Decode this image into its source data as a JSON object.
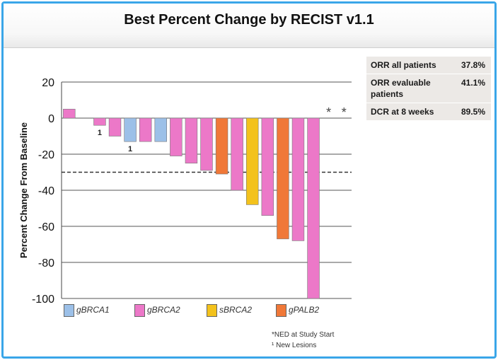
{
  "chart_data": {
    "type": "bar",
    "title": "Best Percent Change by RECIST v1.1",
    "ylabel": "Percent Change From Baseline",
    "ylim": [
      -100,
      20
    ],
    "yticks": [
      20,
      0,
      -20,
      -40,
      -60,
      -80,
      -100
    ],
    "threshold": -30,
    "series": [
      {
        "name": "gBRCA1",
        "color": "#9cc0e8"
      },
      {
        "name": "gBRCA2",
        "color": "#ec78c8"
      },
      {
        "name": "sBRCA2",
        "color": "#f3c21c"
      },
      {
        "name": "gPALB2",
        "color": "#f07838"
      }
    ],
    "bars": [
      {
        "value": 5,
        "series": "gBRCA2",
        "marker": ""
      },
      {
        "value": 0,
        "series": "gBRCA2",
        "marker": ""
      },
      {
        "value": -4,
        "series": "gBRCA2",
        "marker": "1"
      },
      {
        "value": -10,
        "series": "gBRCA2",
        "marker": ""
      },
      {
        "value": -13,
        "series": "gBRCA1",
        "marker": "1"
      },
      {
        "value": -13,
        "series": "gBRCA2",
        "marker": ""
      },
      {
        "value": -13,
        "series": "gBRCA1",
        "marker": ""
      },
      {
        "value": -21,
        "series": "gBRCA2",
        "marker": ""
      },
      {
        "value": -25,
        "series": "gBRCA2",
        "marker": ""
      },
      {
        "value": -29,
        "series": "gBRCA2",
        "marker": ""
      },
      {
        "value": -31,
        "series": "gPALB2",
        "marker": ""
      },
      {
        "value": -40,
        "series": "gBRCA2",
        "marker": ""
      },
      {
        "value": -48,
        "series": "sBRCA2",
        "marker": ""
      },
      {
        "value": -54,
        "series": "gBRCA2",
        "marker": ""
      },
      {
        "value": -67,
        "series": "gPALB2",
        "marker": ""
      },
      {
        "value": -68,
        "series": "gBRCA2",
        "marker": ""
      },
      {
        "value": -100,
        "series": "gBRCA2",
        "marker": ""
      },
      {
        "value": 0,
        "series": "",
        "marker": "*"
      },
      {
        "value": 0,
        "series": "",
        "marker": "*"
      }
    ]
  },
  "stats": [
    {
      "label": "ORR all patients",
      "value": "37.8%"
    },
    {
      "label": "ORR evaluable patients",
      "value": "41.1%"
    },
    {
      "label": "DCR at 8 weeks",
      "value": "89.5%"
    }
  ],
  "notes": {
    "ned": "*NED at Study Start",
    "lesions": "¹ New Lesions"
  }
}
